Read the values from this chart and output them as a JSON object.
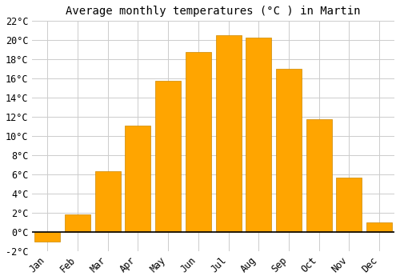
{
  "title": "Average monthly temperatures (°C ) in Martin",
  "months": [
    "Jan",
    "Feb",
    "Mar",
    "Apr",
    "May",
    "Jun",
    "Jul",
    "Aug",
    "Sep",
    "Oct",
    "Nov",
    "Dec"
  ],
  "values": [
    -1.0,
    1.8,
    6.3,
    11.1,
    15.8,
    18.8,
    20.5,
    20.3,
    17.0,
    11.8,
    5.7,
    1.0
  ],
  "bar_color": "#FFA500",
  "bar_edge_color": "#CC8800",
  "ylim": [
    -2,
    22
  ],
  "yticks": [
    -2,
    0,
    2,
    4,
    6,
    8,
    10,
    12,
    14,
    16,
    18,
    20,
    22
  ],
  "background_color": "#ffffff",
  "grid_color": "#cccccc",
  "title_fontsize": 10,
  "tick_fontsize": 8.5,
  "bar_width": 0.85
}
